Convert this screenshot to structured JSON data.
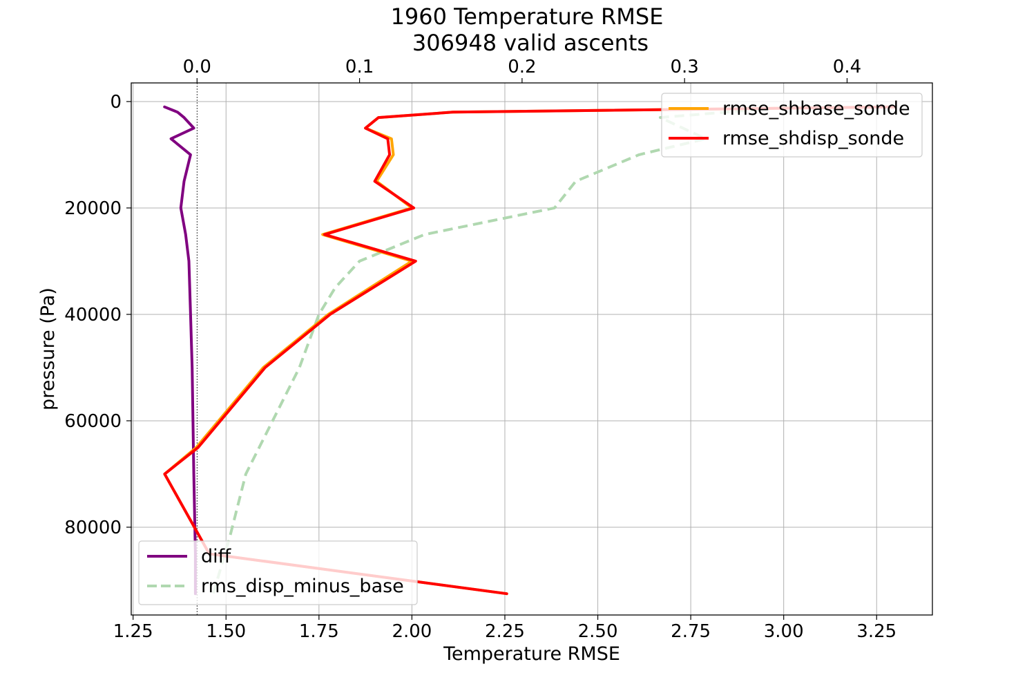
{
  "chart_data": {
    "type": "line",
    "title": "1960 Temperature RMSE\n306948 valid ascents",
    "xlabel": "Temperature RMSE",
    "ylabel": "pressure (Pa)",
    "xlim": [
      1.245,
      3.4
    ],
    "ylim": [
      96500,
      -3500
    ],
    "xticks": [
      1.25,
      1.5,
      1.75,
      2.0,
      2.25,
      2.5,
      2.75,
      3.0,
      3.25
    ],
    "xtick_labels": [
      "1.25",
      "1.50",
      "1.75",
      "2.00",
      "2.25",
      "2.50",
      "2.75",
      "3.00",
      "3.25"
    ],
    "yticks": [
      0,
      20000,
      40000,
      60000,
      80000
    ],
    "ytick_labels": [
      "0",
      "20000",
      "40000",
      "60000",
      "80000"
    ],
    "top_xlim": [
      -0.0405,
      0.4525
    ],
    "top_xticks": [
      0.0,
      0.1,
      0.2,
      0.3,
      0.4
    ],
    "top_xtick_labels": [
      "0.0",
      "0.1",
      "0.2",
      "0.3",
      "0.4"
    ],
    "grid": true,
    "zero_reference_line": 0.0,
    "series": [
      {
        "name": "rmse_shbase_sonde",
        "axis": "bottom",
        "color": "#ffa500",
        "style": "solid",
        "legend": "upper-right",
        "points": [
          [
            3.29,
            1000
          ],
          [
            2.11,
            2000
          ],
          [
            1.91,
            3000
          ],
          [
            1.875,
            5000
          ],
          [
            1.945,
            7000
          ],
          [
            1.95,
            10000
          ],
          [
            1.905,
            15000
          ],
          [
            2.0,
            20000
          ],
          [
            1.76,
            25000
          ],
          [
            2.0,
            30000
          ],
          [
            1.775,
            40000
          ],
          [
            1.6,
            50000
          ],
          [
            1.42,
            65000
          ],
          [
            1.335,
            70000
          ],
          [
            1.455,
            85000
          ],
          [
            2.255,
            92500
          ]
        ]
      },
      {
        "name": "rmse_shdisp_sonde",
        "axis": "bottom",
        "color": "#ff0000",
        "style": "solid",
        "legend": "upper-right",
        "points": [
          [
            3.3,
            1000
          ],
          [
            2.11,
            2000
          ],
          [
            1.91,
            3000
          ],
          [
            1.875,
            5000
          ],
          [
            1.935,
            7000
          ],
          [
            1.94,
            10000
          ],
          [
            1.9,
            15000
          ],
          [
            2.005,
            20000
          ],
          [
            1.765,
            25000
          ],
          [
            2.01,
            30000
          ],
          [
            1.78,
            40000
          ],
          [
            1.605,
            50000
          ],
          [
            1.425,
            65000
          ],
          [
            1.335,
            70000
          ],
          [
            1.455,
            85000
          ],
          [
            2.255,
            92500
          ]
        ]
      },
      {
        "name": "diff",
        "axis": "top",
        "color": "#800080",
        "style": "solid",
        "legend": "lower-left",
        "points": [
          [
            -0.02,
            1000
          ],
          [
            -0.012,
            2000
          ],
          [
            -0.008,
            3000
          ],
          [
            -0.002,
            5000
          ],
          [
            -0.016,
            7000
          ],
          [
            -0.004,
            10000
          ],
          [
            -0.008,
            15000
          ],
          [
            -0.01,
            20000
          ],
          [
            -0.007,
            25000
          ],
          [
            -0.005,
            30000
          ],
          [
            -0.004,
            40000
          ],
          [
            -0.003,
            50000
          ],
          [
            -0.002,
            70000
          ],
          [
            -0.001,
            85000
          ],
          [
            -0.001,
            92500
          ]
        ]
      },
      {
        "name": "rms_disp_minus_base",
        "axis": "top",
        "color": "#b0d8b0",
        "style": "dashed",
        "legend": "lower-left",
        "points": [
          [
            0.365,
            1000
          ],
          [
            0.285,
            3000
          ],
          [
            0.313,
            7000
          ],
          [
            0.272,
            10000
          ],
          [
            0.233,
            15000
          ],
          [
            0.22,
            20000
          ],
          [
            0.14,
            25000
          ],
          [
            0.1,
            30000
          ],
          [
            0.085,
            35000
          ],
          [
            0.075,
            40000
          ],
          [
            0.063,
            50000
          ],
          [
            0.03,
            70000
          ],
          [
            0.02,
            82000
          ],
          [
            0.01,
            92500
          ]
        ]
      }
    ]
  }
}
